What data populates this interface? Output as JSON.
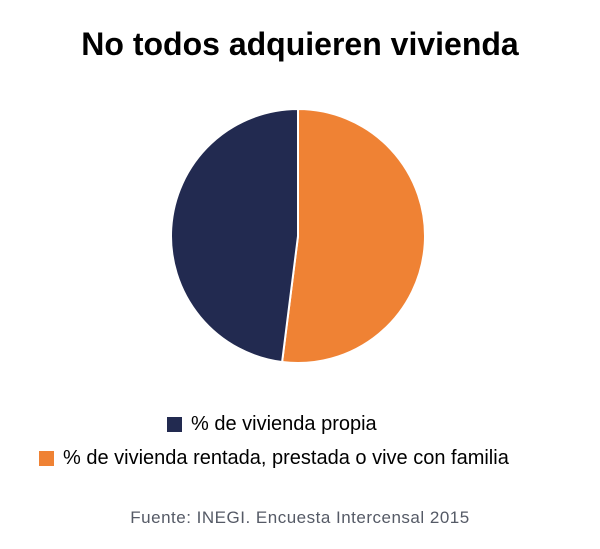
{
  "chart_data": {
    "type": "pie",
    "title": "No todos adquieren vivienda",
    "slices": [
      {
        "label": "% de vivienda propia",
        "value": 48,
        "color": "#222a50"
      },
      {
        "label": "% de vivienda rentada, prestada o vive con familia",
        "value": 52,
        "color": "#ef8234"
      }
    ],
    "legend_position": "bottom"
  },
  "source": "Fuente: INEGI. Encuesta Intercensal 2015"
}
